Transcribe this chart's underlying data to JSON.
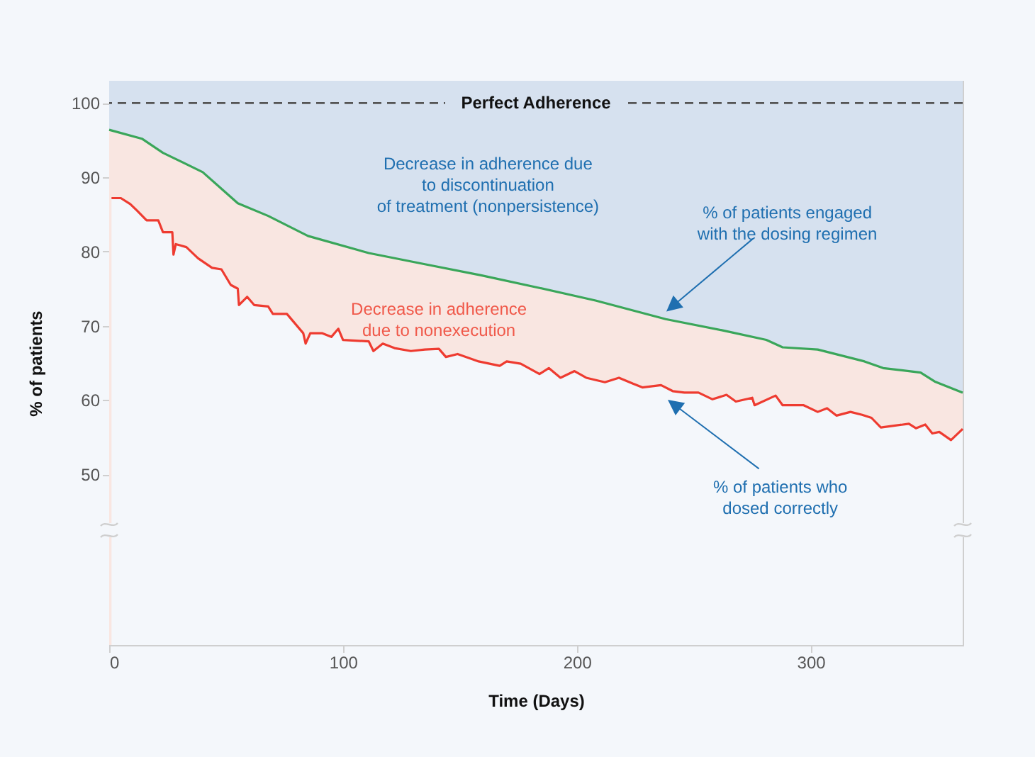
{
  "chart_data": {
    "type": "area",
    "xlabel": "Time (Days)",
    "ylabel": "% of patients",
    "xlim": [
      0,
      365
    ],
    "ylim": [
      27,
      103
    ],
    "xticks": [
      0,
      100,
      200,
      300
    ],
    "yticks": [
      50,
      60,
      70,
      80,
      90,
      100
    ],
    "grid": false,
    "tick_labels": true,
    "series": [
      {
        "color": "#3aa65a",
        "x": [
          0,
          14,
          23,
          40,
          55,
          68,
          85,
          111,
          135,
          159,
          184,
          208,
          238,
          262,
          281,
          288,
          303,
          323,
          331,
          347,
          353,
          365
        ],
        "values": [
          96.4,
          95.2,
          93.3,
          90.7,
          86.5,
          84.8,
          82.1,
          79.8,
          78.3,
          76.8,
          75.1,
          73.4,
          70.9,
          69.4,
          68.1,
          67.1,
          66.8,
          65.2,
          64.3,
          63.7,
          62.5,
          61.0
        ]
      },
      {
        "color": "#ee3b30",
        "x": [
          1,
          5,
          9,
          12,
          16,
          21,
          23,
          27,
          27.5,
          28.5,
          33,
          38,
          44,
          48,
          52,
          55,
          55.5,
          59,
          62,
          68,
          70,
          76,
          83,
          84,
          86,
          91,
          95,
          98,
          100,
          111,
          113,
          117,
          122,
          129,
          135,
          141,
          144,
          149,
          158,
          167,
          170,
          176,
          184,
          188,
          193,
          199,
          204,
          212,
          218,
          224,
          228,
          236,
          241,
          246,
          252,
          258,
          264,
          268,
          275,
          276,
          285,
          288,
          297,
          303,
          307,
          311,
          317,
          322,
          326,
          330,
          342,
          345,
          349,
          352,
          355,
          360,
          365
        ],
        "values": [
          87.2,
          87.2,
          86.4,
          85.5,
          84.2,
          84.2,
          82.6,
          82.6,
          79.6,
          81.0,
          80.6,
          79.1,
          77.8,
          77.6,
          75.5,
          75.0,
          72.8,
          73.9,
          72.8,
          72.6,
          71.6,
          71.6,
          69.0,
          67.6,
          69.0,
          69.0,
          68.5,
          69.6,
          68.1,
          67.9,
          66.6,
          67.6,
          67.0,
          66.6,
          66.8,
          66.9,
          65.8,
          66.2,
          65.2,
          64.6,
          65.2,
          64.9,
          63.5,
          64.3,
          63.0,
          63.9,
          63.0,
          62.4,
          63.0,
          62.2,
          61.7,
          62.0,
          61.2,
          61.0,
          61.0,
          60.1,
          60.7,
          59.8,
          60.3,
          59.3,
          60.6,
          59.3,
          59.3,
          58.4,
          58.9,
          57.9,
          58.4,
          58.0,
          57.6,
          56.3,
          56.8,
          56.2,
          56.7,
          55.5,
          55.7,
          54.6,
          56.1
        ]
      }
    ],
    "ref_lines": [
      {
        "axis": "y",
        "value": 100,
        "label": "Perfect Adherence",
        "color": "#555555",
        "line_style": "dashed"
      }
    ],
    "annotations": [
      "Decrease in adherence due\nto discontinuation\nof treatment (nonpersistence)",
      "Decrease in adherence\ndue to nonexecution",
      "% of patients engaged\nwith the dosing regimen",
      "% of patients who\ndosed correctly"
    ]
  }
}
